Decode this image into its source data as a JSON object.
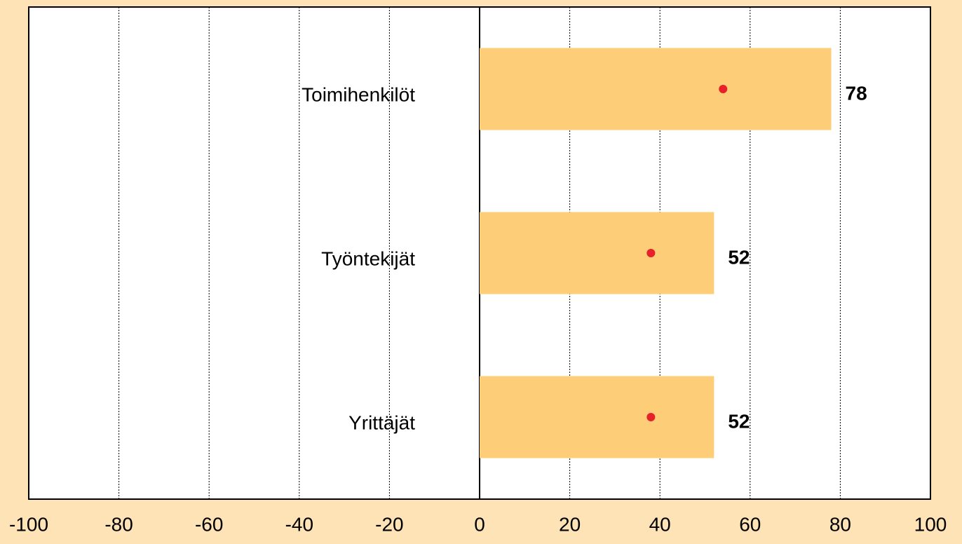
{
  "chart_data": {
    "type": "bar",
    "orientation": "horizontal",
    "categories": [
      "Toimihenkilöt",
      "Työntekijät",
      "Yrittäjät"
    ],
    "values": [
      78,
      52,
      52
    ],
    "color": "#fdcd77",
    "markers": {
      "values": [
        54,
        38,
        38
      ],
      "color": "#e8202a"
    },
    "xlim": [
      -100,
      100
    ],
    "xticks": [
      -100,
      -80,
      -60,
      -40,
      -20,
      0,
      20,
      40,
      60,
      80,
      100
    ],
    "grid": true
  }
}
